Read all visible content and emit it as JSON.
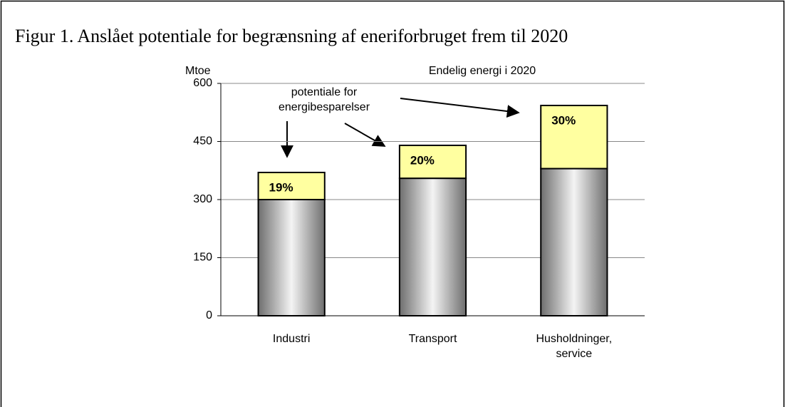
{
  "chart_data": {
    "type": "stacked_bar",
    "title": "Figur 1. Anslået potentiale for begrænsning af eneriforbruget frem til 2020",
    "subtitle": "Endelig energi i 2020",
    "y_label": "Mtoe",
    "annotation": "potentiale for\nenergibesparelser",
    "categories": [
      "Industri",
      "Transport",
      "Husholdninger,\nservice"
    ],
    "series": [
      {
        "color": "#c8c8c8",
        "values": [
          300,
          355,
          380
        ]
      },
      {
        "color": "#ffffa0",
        "values": [
          70,
          85,
          163
        ]
      }
    ],
    "percent_labels": [
      "19%",
      "20%",
      "30%"
    ],
    "ylim": [
      0,
      600
    ],
    "yticks": [
      0,
      150,
      300,
      450,
      600
    ],
    "grid": true
  }
}
